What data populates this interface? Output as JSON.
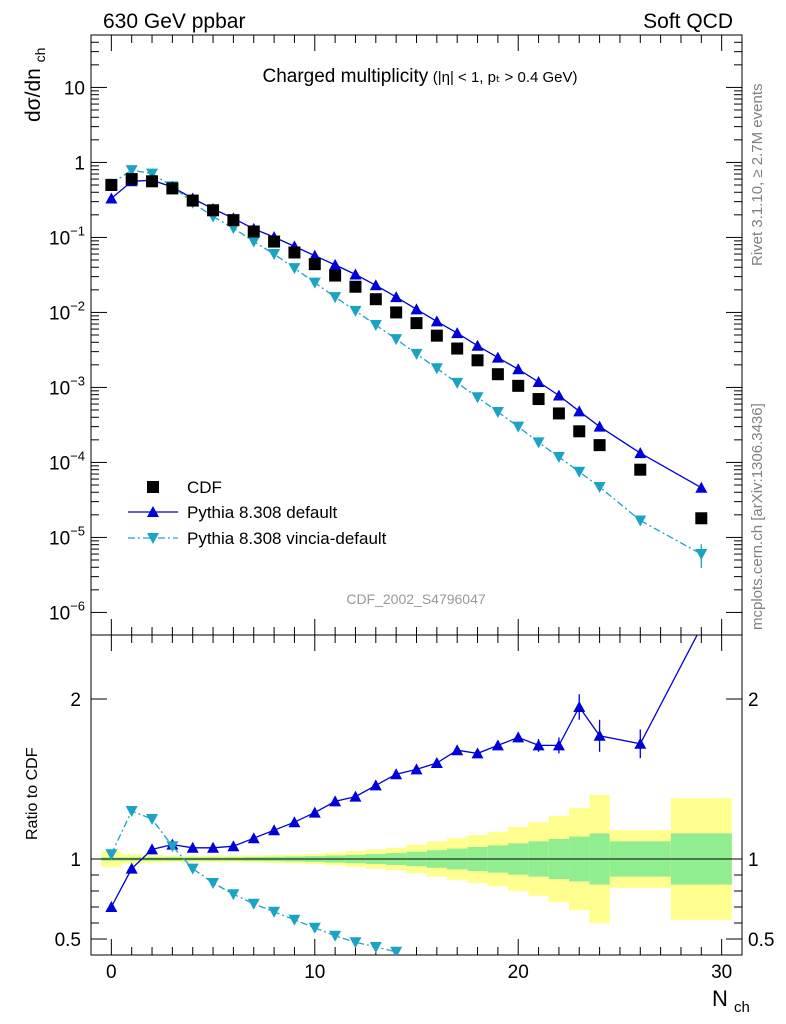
{
  "header": {
    "left": "630 GeV ppbar",
    "right": "Soft QCD"
  },
  "side_labels": {
    "top": "Rivet 3.1.10, ≥ 2.7M events",
    "bottom": "mcplots.cern.ch [arXiv:1306.3436]"
  },
  "analysis_id": "CDF_2002_S4796047",
  "chart_data": [
    {
      "type": "scatter",
      "panel": "main",
      "title": "Charged multiplicity",
      "title_suffix": "(|η| < 1, p_T > 0.4 GeV)",
      "ylabel": "dσ/dn_ch",
      "xlabel": "N_ch",
      "xlim": [
        -1,
        31
      ],
      "ylim": [
        5e-07,
        50
      ],
      "yscale": "log",
      "x_ticks": [
        0,
        10,
        20,
        30
      ],
      "legend_position": "lower-left",
      "series": [
        {
          "name": "CDF",
          "style": "black-squares",
          "color": "#000000",
          "x": [
            0,
            1,
            2,
            3,
            4,
            5,
            6,
            7,
            8,
            9,
            10,
            11,
            12,
            13,
            14,
            15,
            16,
            17,
            18,
            19,
            20,
            21,
            22,
            23,
            24,
            26,
            29
          ],
          "y": [
            0.5,
            0.6,
            0.56,
            0.45,
            0.31,
            0.23,
            0.17,
            0.12,
            0.088,
            0.063,
            0.044,
            0.031,
            0.022,
            0.015,
            0.01,
            0.0072,
            0.0049,
            0.0033,
            0.0023,
            0.0015,
            0.00105,
            0.0007,
            0.00045,
            0.00026,
            0.00017,
            8e-05,
            1.8e-05
          ]
        },
        {
          "name": "Pythia 8.308 default",
          "style": "solid-line-up-triangles",
          "color": "#0000d8",
          "x": [
            0,
            1,
            2,
            3,
            4,
            5,
            6,
            7,
            8,
            9,
            10,
            11,
            12,
            13,
            14,
            15,
            16,
            17,
            18,
            19,
            20,
            21,
            22,
            23,
            24,
            26,
            29
          ],
          "y": [
            0.33,
            0.56,
            0.58,
            0.47,
            0.33,
            0.24,
            0.18,
            0.13,
            0.101,
            0.076,
            0.057,
            0.043,
            0.032,
            0.023,
            0.016,
            0.011,
            0.0076,
            0.0053,
            0.0036,
            0.0025,
            0.00175,
            0.00118,
            0.00078,
            0.00048,
            0.0003,
            0.000133,
            4.6e-05
          ]
        },
        {
          "name": "Pythia 8.308 vincia-default",
          "style": "dashdot-line-down-triangles",
          "color": "#1ba3c6",
          "x": [
            0,
            1,
            2,
            3,
            4,
            5,
            6,
            7,
            8,
            9,
            10,
            11,
            12,
            13,
            14,
            15,
            16,
            17,
            18,
            19,
            20,
            21,
            22,
            23,
            24,
            26,
            29
          ],
          "y": [
            0.52,
            0.79,
            0.71,
            0.48,
            0.29,
            0.19,
            0.133,
            0.088,
            0.06,
            0.039,
            0.025,
            0.016,
            0.0105,
            0.0068,
            0.0044,
            0.0028,
            0.0018,
            0.00115,
            0.00074,
            0.00047,
            0.0003,
            0.000185,
            0.000118,
            7.5e-05,
            4.7e-05,
            1.68e-05,
            6e-06
          ]
        }
      ]
    },
    {
      "type": "line",
      "panel": "ratio",
      "ylabel": "Ratio to CDF",
      "xlabel": "N_ch",
      "xlim": [
        -1,
        31
      ],
      "ylim": [
        0.4,
        2.4
      ],
      "y_ticks": [
        0.5,
        1,
        2
      ],
      "reference_line": 1,
      "uncertainty_bands": {
        "x_edges": [
          -0.5,
          0.5,
          1.5,
          2.5,
          3.5,
          4.5,
          5.5,
          6.5,
          7.5,
          8.5,
          9.5,
          10.5,
          11.5,
          12.5,
          13.5,
          14.5,
          15.5,
          16.5,
          17.5,
          18.5,
          19.5,
          20.5,
          21.5,
          22.5,
          23.5,
          24.5,
          27.5,
          30.5
        ],
        "inner_halfwidth": [
          0.01,
          0.01,
          0.01,
          0.01,
          0.01,
          0.01,
          0.01,
          0.012,
          0.014,
          0.016,
          0.018,
          0.022,
          0.026,
          0.031,
          0.037,
          0.045,
          0.055,
          0.065,
          0.075,
          0.085,
          0.098,
          0.11,
          0.125,
          0.14,
          0.16,
          0.11,
          0.16
        ],
        "outer_halfwidth": [
          0.05,
          0.03,
          0.025,
          0.02,
          0.02,
          0.02,
          0.02,
          0.022,
          0.025,
          0.028,
          0.032,
          0.04,
          0.05,
          0.06,
          0.07,
          0.09,
          0.11,
          0.13,
          0.15,
          0.17,
          0.2,
          0.23,
          0.27,
          0.32,
          0.4,
          0.18,
          0.38
        ],
        "inner_color": "#90ee90",
        "outer_color": "#ffff90"
      },
      "series": [
        {
          "name": "Pythia 8.308 default",
          "color": "#0000d8",
          "x": [
            0,
            1,
            2,
            3,
            4,
            5,
            6,
            7,
            8,
            9,
            10,
            11,
            12,
            13,
            14,
            15,
            16,
            17,
            18,
            19,
            20,
            21,
            22,
            23,
            24,
            26,
            29
          ],
          "y": [
            0.7,
            0.94,
            1.06,
            1.09,
            1.07,
            1.07,
            1.08,
            1.13,
            1.18,
            1.23,
            1.29,
            1.36,
            1.39,
            1.46,
            1.53,
            1.56,
            1.6,
            1.68,
            1.66,
            1.71,
            1.76,
            1.71,
            1.71,
            1.95,
            1.77,
            1.72,
            2.45
          ],
          "err": [
            0,
            0,
            0,
            0,
            0,
            0,
            0,
            0,
            0,
            0,
            0,
            0,
            0,
            0,
            0,
            0,
            0,
            0,
            0,
            0.02,
            0.03,
            0.04,
            0.05,
            0.08,
            0.1,
            0.09,
            0
          ]
        },
        {
          "name": "Pythia 8.308 vincia-default",
          "color": "#1ba3c6",
          "x": [
            0,
            1,
            2,
            3,
            4,
            5,
            6,
            7,
            8,
            9,
            10,
            11,
            12,
            13,
            14
          ],
          "y": [
            1.03,
            1.3,
            1.25,
            1.08,
            0.94,
            0.85,
            0.78,
            0.72,
            0.67,
            0.62,
            0.57,
            0.52,
            0.48,
            0.45,
            0.42
          ]
        }
      ]
    }
  ],
  "colors": {
    "cdf": "#000000",
    "pythia_default": "#0000d8",
    "pythia_vincia": "#1ba3c6",
    "band_inner": "#90ee90",
    "band_outer": "#ffff90",
    "label_gray": "#808080"
  }
}
